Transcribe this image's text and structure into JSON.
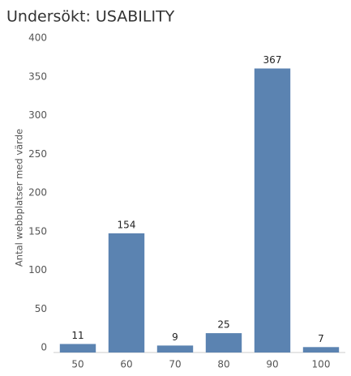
{
  "chart_data": {
    "type": "bar",
    "title": "Undersökt: USABILITY",
    "y_label": "Antal webbplatser med värde",
    "categories": [
      "50",
      "60",
      "70",
      "80",
      "90",
      "100"
    ],
    "values": [
      11,
      154,
      9,
      25,
      367,
      7
    ],
    "color": "#5b83b1",
    "ylim": [
      0,
      400
    ],
    "yticks": [
      0,
      50,
      100,
      150,
      200,
      250,
      300,
      350,
      400
    ],
    "grid": false
  }
}
